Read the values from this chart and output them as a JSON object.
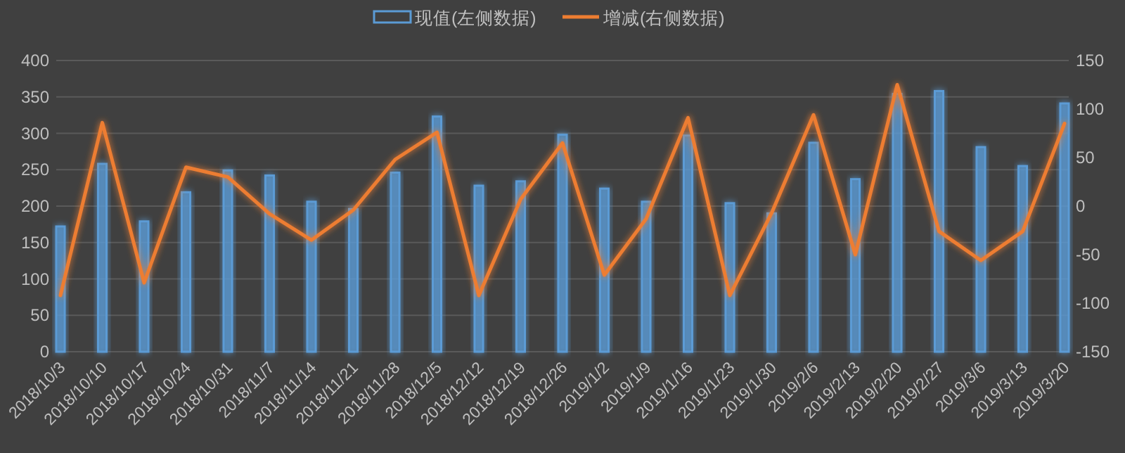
{
  "chart_data": {
    "type": "bar",
    "categories": [
      "2018/10/3",
      "2018/10/10",
      "2018/10/17",
      "2018/10/24",
      "2018/10/31",
      "2018/11/7",
      "2018/11/14",
      "2018/11/21",
      "2018/11/28",
      "2018/12/5",
      "2018/12/12",
      "2018/12/19",
      "2018/12/26",
      "2019/1/2",
      "2019/1/9",
      "2019/1/16",
      "2019/1/23",
      "2019/1/30",
      "2019/2/6",
      "2019/2/13",
      "2019/2/20",
      "2019/2/27",
      "2019/3/6",
      "2019/3/13",
      "2019/3/20"
    ],
    "series": [
      {
        "name": "现值(左侧数据)",
        "color": "#5b9bd5",
        "values": [
          172,
          258,
          179,
          219,
          249,
          242,
          206,
          196,
          246,
          323,
          228,
          234,
          298,
          224,
          206,
          297,
          204,
          190,
          287,
          237,
          354,
          358,
          281,
          255,
          341
        ]
      },
      {
        "name": "增减(右侧数据)",
        "type": "line",
        "axis": "y2",
        "color": "#ed7d31",
        "values": [
          -92,
          86,
          -79,
          40,
          30,
          -8,
          -35,
          -4,
          48,
          76,
          -92,
          7,
          65,
          -71,
          -13,
          91,
          -92,
          -7,
          94,
          -50,
          125,
          -26,
          -56,
          -26,
          85
        ]
      }
    ],
    "ylim": [
      0,
      400
    ],
    "yticks": [
      0,
      50,
      100,
      150,
      200,
      250,
      300,
      350,
      400
    ],
    "y2lim": [
      -150,
      150
    ],
    "y2ticks": [
      -150,
      -100,
      -50,
      0,
      50,
      100,
      150
    ],
    "grid": "y",
    "legend": "top",
    "marker": "none",
    "line_style": "solid"
  }
}
